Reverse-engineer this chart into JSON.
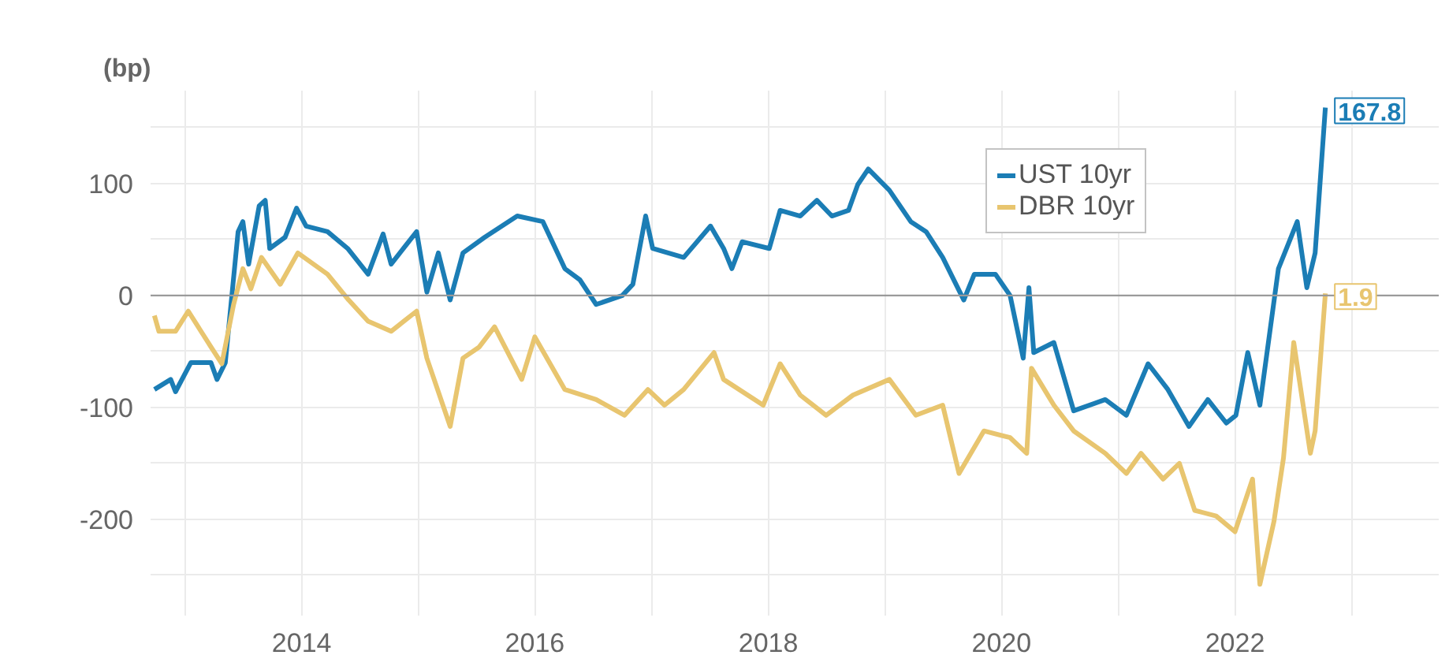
{
  "chart_data": {
    "type": "line",
    "ylabel": "(bp)",
    "xlim": [
      "2012-09-15",
      "2023-10-01"
    ],
    "xticks": [
      {
        "value": "2013-01-01",
        "label": null
      },
      {
        "value": "2014-01-01",
        "label": "2014"
      },
      {
        "value": "2015-01-01",
        "label": null
      },
      {
        "value": "2016-01-01",
        "label": "2016"
      },
      {
        "value": "2017-01-01",
        "label": null
      },
      {
        "value": "2018-01-01",
        "label": "2018"
      },
      {
        "value": "2019-01-01",
        "label": null
      },
      {
        "value": "2020-01-01",
        "label": "2020"
      },
      {
        "value": "2021-01-01",
        "label": null
      },
      {
        "value": "2022-01-01",
        "label": "2022"
      },
      {
        "value": "2023-01-01",
        "label": null
      }
    ],
    "ylim": [
      -286,
      183
    ],
    "yticks": [
      {
        "value": -250,
        "label": null
      },
      -200,
      {
        "value": -150,
        "label": null
      },
      -100,
      {
        "value": -50,
        "label": null
      },
      0,
      {
        "value": 50,
        "label": null
      },
      100,
      {
        "value": 150,
        "label": null
      }
    ],
    "grid": true,
    "legend": "top right",
    "marker": "none",
    "line_style": "solid",
    "ref_lines": [
      {
        "axis": "y",
        "value": 0,
        "color": "#9a9a9a"
      }
    ],
    "series": [
      {
        "name": "UST 10yr",
        "color": "#1b7db5",
        "x": [
          "2012-09-27",
          "2012-11-17",
          "2012-12-02",
          "2013-01-19",
          "2013-03-23",
          "2013-04-11",
          "2013-05-07",
          "2013-06-16",
          "2013-07-01",
          "2013-07-19",
          "2013-08-21",
          "2013-09-09",
          "2013-09-23",
          "2013-11-10",
          "2013-12-16",
          "2014-01-15",
          "2014-03-23",
          "2014-05-25",
          "2014-07-28",
          "2014-09-13",
          "2014-10-08",
          "2014-12-27",
          "2015-01-28",
          "2015-03-05",
          "2015-04-11",
          "2015-05-21",
          "2015-07-28",
          "2015-11-07",
          "2016-01-26",
          "2016-04-04",
          "2016-05-21",
          "2016-07-11",
          "2016-10-01",
          "2016-11-03",
          "2016-12-13",
          "2017-01-04",
          "2017-04-11",
          "2017-07-04",
          "2017-08-14",
          "2017-09-09",
          "2017-10-11",
          "2018-01-04",
          "2018-02-07",
          "2018-04-11",
          "2018-06-02",
          "2018-07-19",
          "2018-09-09",
          "2018-10-08",
          "2018-11-10",
          "2019-01-15",
          "2019-03-23",
          "2019-05-10",
          "2019-07-01",
          "2019-09-05",
          "2019-10-08",
          "2019-12-13",
          "2020-01-28",
          "2020-03-09",
          "2020-03-27",
          "2020-04-11",
          "2020-06-13",
          "2020-08-14",
          "2020-11-21",
          "2021-01-26",
          "2021-04-04",
          "2021-06-05",
          "2021-08-10",
          "2021-10-08",
          "2021-12-05",
          "2022-01-04",
          "2022-02-10",
          "2022-03-20",
          "2022-05-17",
          "2022-07-15",
          "2022-08-14",
          "2022-09-09",
          "2022-10-11"
        ],
        "values": [
          -84,
          -75,
          -86,
          -60,
          -60,
          -75,
          -60,
          57,
          66,
          28,
          80,
          85,
          42,
          52,
          78,
          62,
          57,
          42,
          19,
          55,
          28,
          57,
          3,
          38,
          -4,
          38,
          52,
          71,
          66,
          24,
          14,
          -8,
          0,
          10,
          71,
          42,
          34,
          62,
          42,
          24,
          48,
          42,
          76,
          71,
          85,
          71,
          76,
          99,
          113,
          94,
          66,
          57,
          34,
          -4,
          19,
          19,
          0,
          -56,
          7,
          -51,
          -42,
          -103,
          -93,
          -107,
          -61,
          -84,
          -117,
          -93,
          -114,
          -107,
          -51,
          -98,
          24,
          66,
          7,
          38,
          167.8
        ],
        "value_labels": [
          null,
          null,
          null,
          null,
          null,
          null,
          null,
          null,
          null,
          null,
          null,
          null,
          null,
          null,
          null,
          null,
          null,
          null,
          null,
          null,
          null,
          null,
          null,
          null,
          null,
          null,
          null,
          null,
          null,
          null,
          null,
          null,
          null,
          null,
          null,
          null,
          null,
          null,
          null,
          null,
          null,
          null,
          null,
          null,
          null,
          null,
          null,
          null,
          null,
          null,
          null,
          null,
          null,
          null,
          null,
          null,
          null,
          null,
          null,
          null,
          null,
          null,
          null,
          null,
          null,
          null,
          null,
          null,
          null,
          null,
          null,
          null,
          null,
          null,
          null,
          null,
          "167.8"
        ]
      },
      {
        "name": "DBR 10yr",
        "color": "#e8c56f",
        "x": [
          "2012-09-27",
          "2012-10-11",
          "2012-12-02",
          "2013-01-11",
          "2013-03-23",
          "2013-04-26",
          "2013-06-02",
          "2013-07-01",
          "2013-07-26",
          "2013-08-28",
          "2013-10-26",
          "2013-12-20",
          "2014-03-23",
          "2014-05-28",
          "2014-07-28",
          "2014-10-08",
          "2014-12-27",
          "2015-01-28",
          "2015-04-11",
          "2015-05-21",
          "2015-07-11",
          "2015-08-28",
          "2015-11-21",
          "2016-01-01",
          "2016-04-04",
          "2016-07-11",
          "2016-10-08",
          "2016-12-20",
          "2017-02-10",
          "2017-04-11",
          "2017-07-15",
          "2017-08-14",
          "2017-12-16",
          "2018-02-07",
          "2018-04-11",
          "2018-07-01",
          "2018-09-23",
          "2019-01-15",
          "2019-04-08",
          "2019-07-01",
          "2019-08-21",
          "2019-11-07",
          "2020-01-28",
          "2020-03-20",
          "2020-04-04",
          "2020-06-13",
          "2020-08-14",
          "2020-11-21",
          "2021-01-26",
          "2021-03-13",
          "2021-05-21",
          "2021-07-11",
          "2021-08-28",
          "2021-11-03",
          "2022-01-01",
          "2022-02-25",
          "2022-03-20",
          "2022-05-03",
          "2022-06-02",
          "2022-07-04",
          "2022-08-25",
          "2022-09-09",
          "2022-10-11"
        ],
        "values": [
          -18,
          -32,
          -32,
          -14,
          -46,
          -61,
          -8,
          24,
          6,
          34,
          10,
          38,
          19,
          -4,
          -23,
          -32,
          -14,
          -56,
          -117,
          -56,
          -46,
          -28,
          -75,
          -37,
          -84,
          -93,
          -107,
          -84,
          -98,
          -84,
          -51,
          -75,
          -98,
          -61,
          -89,
          -107,
          -89,
          -75,
          -107,
          -98,
          -159,
          -121,
          -127,
          -141,
          -65,
          -98,
          -121,
          -141,
          -159,
          -141,
          -164,
          -150,
          -192,
          -197,
          -211,
          -164,
          -258,
          -202,
          -145,
          -42,
          -141,
          -121,
          1.9
        ],
        "value_labels": [
          null,
          null,
          null,
          null,
          null,
          null,
          null,
          null,
          null,
          null,
          null,
          null,
          null,
          null,
          null,
          null,
          null,
          null,
          null,
          null,
          null,
          null,
          null,
          null,
          null,
          null,
          null,
          null,
          null,
          null,
          null,
          null,
          null,
          null,
          null,
          null,
          null,
          null,
          null,
          null,
          null,
          null,
          null,
          null,
          null,
          null,
          null,
          null,
          null,
          null,
          null,
          null,
          null,
          null,
          null,
          null,
          null,
          null,
          null,
          null,
          null,
          null,
          "1.9"
        ]
      }
    ]
  }
}
